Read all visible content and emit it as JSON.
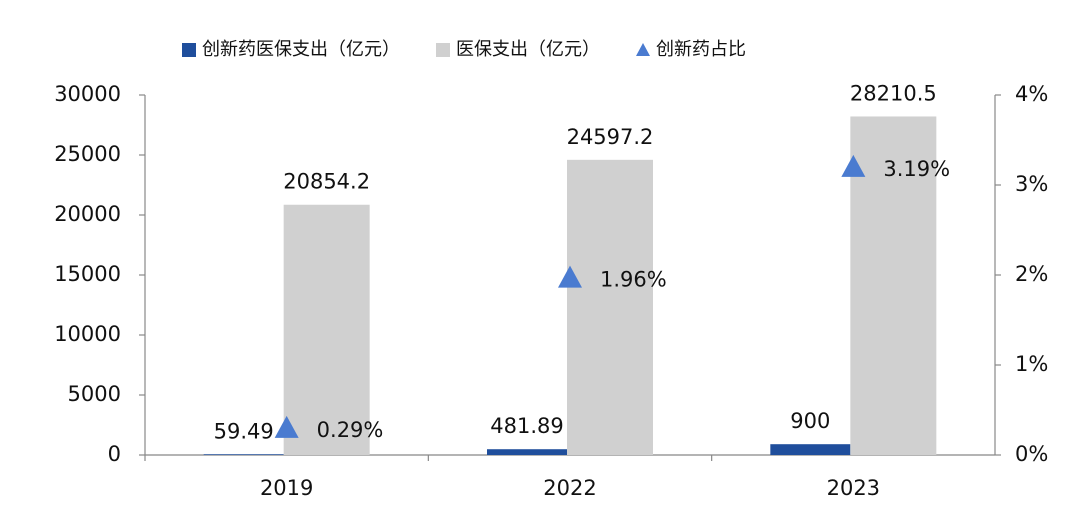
{
  "chart_data": {
    "type": "bar",
    "categories": [
      "2019",
      "2022",
      "2023"
    ],
    "series": [
      {
        "name": "创新药医保支出（亿元）",
        "color": "#1f4e9c",
        "values": [
          59.49,
          481.89,
          900
        ]
      },
      {
        "name": "医保支出（亿元）",
        "color": "#d0d0d0",
        "values": [
          20854.2,
          24597.2,
          28210.5
        ]
      },
      {
        "name": "创新药占比",
        "color": "#4a7bd0",
        "axis": "y2",
        "type": "scatter",
        "values": [
          0.29,
          1.96,
          3.19
        ],
        "value_labels": [
          "0.29%",
          "1.96%",
          "3.19%"
        ]
      }
    ],
    "ylim": [
      0,
      30000
    ],
    "yticks": [
      0,
      5000,
      10000,
      15000,
      20000,
      25000,
      30000
    ],
    "y2lim": [
      0,
      4
    ],
    "y2ticks": [
      {
        "value": 0,
        "label": "0%"
      },
      {
        "value": 1,
        "label": "1%"
      },
      {
        "value": 2,
        "label": "2%"
      },
      {
        "value": 3,
        "label": "3%"
      },
      {
        "value": 4,
        "label": "4%"
      }
    ]
  }
}
